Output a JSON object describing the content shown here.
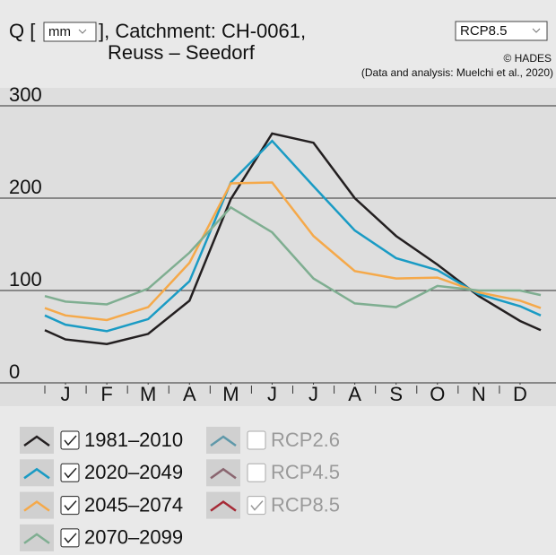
{
  "header": {
    "title_prefix": "Q [",
    "unit": "mm",
    "title_suffix": "], Catchment: CH-0061,",
    "subtitle": "Reuss – Seedorf",
    "scenario_select": "RCP8.5",
    "copyright": "© HADES",
    "credit": "(Data and analysis: Muelchi et al., 2020)"
  },
  "chart_data": {
    "type": "line",
    "x": [
      0.5,
      1,
      2,
      3,
      4,
      5,
      6,
      7,
      8,
      9,
      10,
      11,
      12,
      12.5
    ],
    "xlim": [
      0.5,
      12.5
    ],
    "xticks": [
      {
        "value": 1,
        "label": "J"
      },
      {
        "value": 2,
        "label": "F"
      },
      {
        "value": 3,
        "label": "M"
      },
      {
        "value": 4,
        "label": "A"
      },
      {
        "value": 5,
        "label": "M"
      },
      {
        "value": 6,
        "label": "J"
      },
      {
        "value": 7,
        "label": "J"
      },
      {
        "value": 8,
        "label": "A"
      },
      {
        "value": 9,
        "label": "S"
      },
      {
        "value": 10,
        "label": "O"
      },
      {
        "value": 11,
        "label": "N"
      },
      {
        "value": 12,
        "label": "D"
      }
    ],
    "ylim": [
      0,
      300
    ],
    "yticks": [
      0,
      100,
      200,
      300
    ],
    "grid": true,
    "series": [
      {
        "name": "1981–2010",
        "color": "#231f20",
        "checked": true,
        "values": [
          57,
          47,
          42,
          53,
          89,
          199,
          270,
          260,
          200,
          159,
          128,
          94,
          67,
          57
        ]
      },
      {
        "name": "2020–2049",
        "color": "#1a9bc4",
        "checked": true,
        "values": [
          73,
          63,
          56,
          69,
          110,
          217,
          262,
          213,
          165,
          135,
          122,
          96,
          83,
          73
        ]
      },
      {
        "name": "2045–2074",
        "color": "#f5a94a",
        "checked": true,
        "values": [
          81,
          73,
          68,
          82,
          130,
          216,
          217,
          159,
          121,
          113,
          114,
          98,
          89,
          81
        ]
      },
      {
        "name": "2070–2099",
        "color": "#7fae91",
        "checked": true,
        "values": [
          94,
          88,
          85,
          102,
          141,
          190,
          163,
          113,
          86,
          82,
          105,
          100,
          100,
          95
        ]
      }
    ]
  },
  "scenarios": [
    {
      "name": "RCP2.6",
      "color": "#5f98a9",
      "checked": false
    },
    {
      "name": "RCP4.5",
      "color": "#8a6670",
      "checked": false
    },
    {
      "name": "RCP8.5",
      "color": "#a62a36",
      "checked": true
    }
  ]
}
